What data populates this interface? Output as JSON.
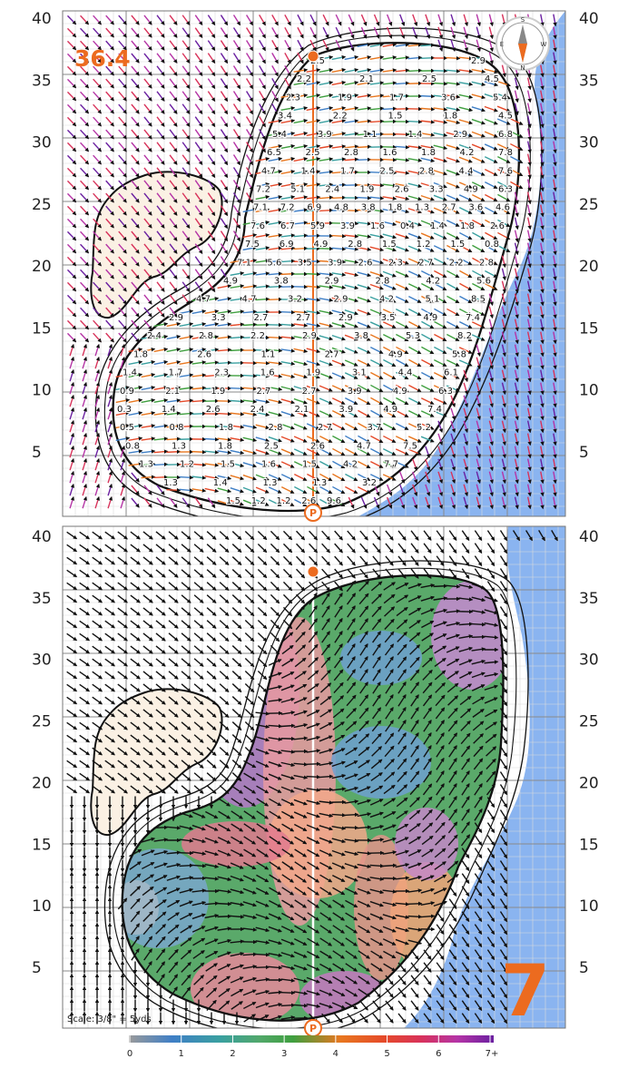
{
  "colors": {
    "water": "#8ab4f0",
    "bunker": "#fbf1e4",
    "accent": "#ec6b1f",
    "outline": "#111111",
    "arrow_dark": "#111111",
    "scale_stops": [
      "#9a9a9a",
      "#3f7fc6",
      "#3aa0a0",
      "#52a86a",
      "#3f9f3f",
      "#e8771f",
      "#e54a2a",
      "#d8325a",
      "#b534a6",
      "#6a1fa0"
    ]
  },
  "top_panel": {
    "hole_yardage": "36.4",
    "compass": {
      "n": "N",
      "s": "S",
      "e": "E",
      "w": "W"
    },
    "pin_marker": "P",
    "grid_labels": [
      {
        "text": "40",
        "value": 40
      },
      {
        "text": "35",
        "value": 35
      },
      {
        "text": "30",
        "value": 30
      },
      {
        "text": "25",
        "value": 25
      },
      {
        "text": "20",
        "value": 20
      },
      {
        "text": "15",
        "value": 15
      },
      {
        "text": "10",
        "value": 10
      },
      {
        "text": "5",
        "value": 5
      }
    ],
    "slope_values": [
      [
        "2.5",
        "2.9"
      ],
      [
        "2.2",
        "2.1",
        "2.5",
        "4.5"
      ],
      [
        "2.3",
        "1.9",
        "1.7",
        "3.6",
        "5.4"
      ],
      [
        "3.4",
        "2.2",
        "1.5",
        "1.8",
        "4.5"
      ],
      [
        "5.4",
        "3.9",
        "1.1",
        "1.4",
        "2.9",
        "6.8"
      ],
      [
        "6.5",
        "2.5",
        "2.8",
        "1.6",
        "1.8",
        "4.2",
        "7.8"
      ],
      [
        "4.7",
        "1.4",
        "1.7",
        "2.5",
        "2.8",
        "4.4",
        "7.6"
      ],
      [
        "7.2",
        "5.1",
        "2.4",
        "1.9",
        "2.6",
        "3.3",
        "4.9",
        "6.3"
      ],
      [
        "7.1",
        "7.2",
        "6.9",
        "4.8",
        "3.8",
        "1.8",
        "1.3",
        "2.7",
        "3.6",
        "4.6"
      ],
      [
        "7.6",
        "6.7",
        "5.9",
        "3.9",
        "1.6",
        "0.4",
        "1.4",
        "1.8",
        "2.6"
      ],
      [
        "7.5",
        "6.9",
        "4.9",
        "2.8",
        "1.5",
        "1.2",
        "1.5",
        "0.8"
      ],
      [
        "7.1",
        "5.6",
        "3.5",
        "3.9",
        "2.6",
        "2.3",
        "2.7",
        "2.2",
        "2.8"
      ],
      [
        "4.9",
        "3.8",
        "2.9",
        "2.8",
        "4.2",
        "5.6"
      ],
      [
        "4.7",
        "4.7",
        "3.2",
        "2.9",
        "4.2",
        "5.1",
        "8.5"
      ],
      [
        "2.9",
        "3.3",
        "2.7",
        "2.7",
        "2.9",
        "3.5",
        "4.9",
        "7.4"
      ],
      [
        "2.4",
        "2.8",
        "2.2",
        "2.9",
        "3.8",
        "5.3",
        "8.2"
      ],
      [
        "1.8",
        "2.6",
        "1.1",
        "2.7",
        "4.9",
        "5.8"
      ],
      [
        "1.4",
        "1.7",
        "2.3",
        "1.6",
        "1.9",
        "3.1",
        "4.4",
        "6.1"
      ],
      [
        "0.9",
        "2.1",
        "1.9",
        "2.7",
        "2.7",
        "3.9",
        "4.9",
        "6.3"
      ],
      [
        "0.3",
        "1.4",
        "2.6",
        "2.4",
        "2.1",
        "3.9",
        "4.9",
        "7.4"
      ],
      [
        "0.5",
        "0.8",
        "1.8",
        "2.8",
        "2.7",
        "3.7",
        "5.2"
      ],
      [
        "0.8",
        "1.3",
        "1.8",
        "2.5",
        "2.6",
        "4.7",
        "7.5"
      ],
      [
        "1.3",
        "1.2",
        "1.5",
        "1.6",
        "1.5",
        "4.2",
        "7.7"
      ],
      [
        "1.3",
        "1.4",
        "1.3",
        "1.3",
        "3.2"
      ],
      [
        "1.5",
        "1.2",
        "1.2",
        "2.6",
        "9.6"
      ]
    ]
  },
  "bottom_panel": {
    "hole_number": "7",
    "pin_marker": "P",
    "scale_text": "Scale: 3/8\" = 5yds",
    "grid_labels": [
      {
        "text": "40",
        "value": 40
      },
      {
        "text": "35",
        "value": 35
      },
      {
        "text": "30",
        "value": 30
      },
      {
        "text": "25",
        "value": 25
      },
      {
        "text": "20",
        "value": 20
      },
      {
        "text": "15",
        "value": 15
      },
      {
        "text": "10",
        "value": 10
      },
      {
        "text": "5",
        "value": 5
      }
    ]
  },
  "legend": {
    "ticks": [
      "0",
      "1",
      "2",
      "3",
      "4",
      "5",
      "6",
      "7+"
    ]
  }
}
